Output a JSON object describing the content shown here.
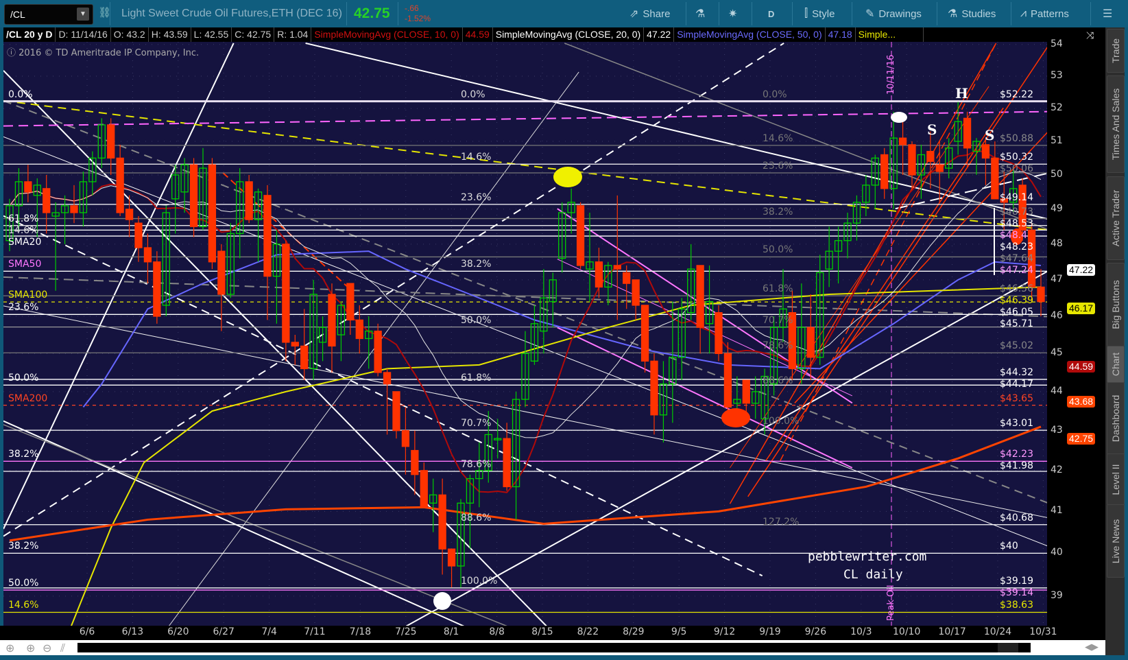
{
  "toolbar": {
    "symbol": "/CL",
    "title": "Light Sweet Crude Oil Futures,ETH (DEC 16)",
    "last": "42.75",
    "change": "-.66",
    "change_pct": "-1.52%",
    "buttons": {
      "share": "Share",
      "period": "D",
      "style": "Style",
      "drawings": "Drawings",
      "studies": "Studies",
      "patterns": "Patterns"
    }
  },
  "legend": {
    "symbol": "/CL 20 y D",
    "date": "D: 11/14/16",
    "open": "O: 43.2",
    "high": "H: 43.59",
    "low": "L: 42.55",
    "close": "C: 42.75",
    "range": "R: 1.04",
    "studies": [
      {
        "label": "SimpleMovingAvg (CLOSE, 10, 0)",
        "value": "44.59",
        "color": "#d01010"
      },
      {
        "label": "SimpleMovingAvg (CLOSE, 20, 0)",
        "value": "47.22",
        "color": "#ffffff"
      },
      {
        "label": "SimpleMovingAvg (CLOSE, 50, 0)",
        "value": "47.18",
        "color": "#6b6bff"
      },
      {
        "label": "Simple...",
        "color": "#e8e800"
      }
    ]
  },
  "copyright": "2016 © TD Ameritrade IP Company, Inc.",
  "annotations": {
    "site": "pebblewriter.com",
    "chart_name": "CL daily",
    "vline_date": "10/11/16",
    "vline_label": "Peak Oil",
    "head": "H",
    "shoulder_left": "S",
    "shoulder_right": "S"
  },
  "side_tabs": [
    "Trade",
    "Times And Sales",
    "Active Trader",
    "Big Buttons",
    "Chart",
    "Dashboard",
    "Level II",
    "Live News"
  ],
  "selected_tab": "Chart",
  "chart_data": {
    "type": "candlestick",
    "price_scale": "log",
    "ylim": [
      38.2,
      54.2
    ],
    "y_ticks": [
      "54",
      "53",
      "52",
      "51",
      "50",
      "49",
      "48",
      "47",
      "46",
      "45",
      "44",
      "43",
      "42",
      "41",
      "40",
      "39"
    ],
    "x_ticks": [
      "6/6",
      "6/13",
      "6/20",
      "6/27",
      "7/4",
      "7/11",
      "7/18",
      "7/25",
      "8/1",
      "8/8",
      "8/15",
      "8/22",
      "8/29",
      "9/5",
      "9/12",
      "9/19",
      "9/26",
      "10/3",
      "10/10",
      "10/17",
      "10/24",
      "10/31"
    ],
    "candles_ohlc": [
      [
        48.1,
        49.3,
        47.8,
        49.1
      ],
      [
        49.1,
        50.2,
        48.4,
        49.8
      ],
      [
        49.8,
        50.3,
        49.2,
        49.5
      ],
      [
        49.4,
        49.9,
        48.2,
        49.7
      ],
      [
        49.6,
        50.0,
        48.3,
        48.9
      ],
      [
        48.8,
        49.2,
        46.7,
        48.9
      ],
      [
        48.9,
        49.4,
        48.0,
        49.1
      ],
      [
        49.1,
        49.7,
        48.6,
        48.9
      ],
      [
        48.9,
        50.1,
        48.5,
        49.8
      ],
      [
        49.8,
        50.7,
        49.4,
        50.5
      ],
      [
        50.5,
        51.7,
        50.2,
        51.5
      ],
      [
        51.5,
        51.7,
        50.0,
        50.5
      ],
      [
        50.5,
        50.9,
        48.8,
        48.9
      ],
      [
        49.0,
        49.4,
        48.2,
        48.7
      ],
      [
        48.6,
        48.8,
        47.5,
        47.9
      ],
      [
        47.9,
        48.3,
        46.9,
        47.5
      ],
      [
        47.5,
        47.8,
        45.8,
        46.0
      ],
      [
        46.3,
        49.1,
        46.0,
        48.9
      ],
      [
        49.3,
        50.3,
        48.3,
        50.0
      ],
      [
        49.5,
        50.5,
        48.9,
        50.3
      ],
      [
        50.3,
        50.5,
        48.2,
        48.5
      ],
      [
        48.5,
        50.8,
        48.4,
        50.2
      ],
      [
        50.3,
        50.5,
        47.3,
        47.5
      ],
      [
        47.8,
        48.0,
        45.6,
        46.6
      ],
      [
        46.6,
        48.6,
        46.5,
        48.3
      ],
      [
        48.3,
        50.2,
        47.6,
        49.8
      ],
      [
        49.8,
        50.0,
        48.6,
        48.7
      ],
      [
        48.7,
        49.6,
        47.5,
        49.5
      ],
      [
        49.4,
        49.7,
        45.9,
        47.1
      ],
      [
        47.1,
        48.4,
        45.8,
        48.0
      ],
      [
        48.0,
        48.1,
        44.8,
        45.3
      ],
      [
        45.3,
        45.5,
        44.7,
        45.2
      ],
      [
        45.2,
        46.2,
        44.3,
        44.6
      ],
      [
        44.6,
        47.0,
        44.3,
        46.6
      ],
      [
        45.3,
        46.0,
        44.8,
        45.7
      ],
      [
        46.6,
        46.9,
        44.5,
        45.2
      ],
      [
        45.5,
        46.4,
        44.8,
        46.3
      ],
      [
        46.9,
        46.9,
        45.5,
        45.9
      ],
      [
        45.9,
        46.3,
        45.0,
        45.4
      ],
      [
        45.4,
        46.0,
        44.6,
        45.6
      ],
      [
        45.6,
        45.8,
        44.4,
        44.5
      ],
      [
        44.5,
        44.6,
        42.9,
        44.2
      ],
      [
        44.0,
        44.0,
        42.8,
        43.0
      ],
      [
        43.0,
        43.6,
        41.9,
        42.6
      ],
      [
        42.5,
        43.0,
        41.4,
        41.9
      ],
      [
        42.0,
        42.2,
        41.1,
        41.1
      ],
      [
        41.2,
        41.8,
        40.5,
        41.4
      ],
      [
        41.4,
        41.8,
        39.5,
        40.1
      ],
      [
        40.1,
        40.1,
        39.2,
        39.7
      ],
      [
        39.7,
        41.3,
        39.2,
        41.2
      ],
      [
        41.2,
        41.9,
        40.1,
        41.8
      ],
      [
        41.8,
        42.7,
        41.1,
        42.0
      ],
      [
        42.0,
        43.5,
        41.7,
        42.9
      ],
      [
        42.8,
        43.3,
        42.3,
        42.8
      ],
      [
        42.8,
        43.2,
        41.5,
        41.6
      ],
      [
        41.6,
        44.0,
        40.8,
        43.8
      ],
      [
        43.8,
        45.6,
        43.6,
        45.0
      ],
      [
        44.8,
        46.3,
        44.7,
        45.8
      ],
      [
        45.6,
        47.3,
        45.0,
        46.5
      ],
      [
        46.4,
        47.2,
        45.7,
        47.0
      ],
      [
        47.6,
        49.2,
        47.2,
        48.9
      ],
      [
        48.9,
        49.6,
        48.3,
        49.2
      ],
      [
        49.1,
        49.2,
        47.3,
        47.4
      ],
      [
        47.3,
        48.9,
        46.4,
        47.5
      ],
      [
        47.5,
        47.9,
        46.5,
        46.8
      ],
      [
        46.8,
        47.5,
        46.3,
        47.4
      ],
      [
        47.4,
        49.4,
        45.9,
        47.3
      ],
      [
        47.2,
        47.4,
        46.2,
        46.9
      ],
      [
        47.0,
        47.0,
        45.9,
        46.3
      ],
      [
        46.3,
        46.3,
        44.5,
        44.8
      ],
      [
        44.8,
        45.0,
        42.9,
        43.4
      ],
      [
        43.4,
        44.8,
        42.7,
        44.2
      ],
      [
        44.2,
        46.4,
        43.2,
        44.9
      ],
      [
        44.9,
        46.5,
        44.3,
        46.2
      ],
      [
        46.1,
        48.0,
        45.9,
        47.3
      ],
      [
        47.4,
        47.4,
        45.0,
        45.7
      ],
      [
        45.8,
        47.4,
        45.0,
        46.4
      ],
      [
        46.1,
        46.3,
        44.8,
        45.0
      ],
      [
        45.0,
        45.3,
        43.2,
        43.6
      ],
      [
        43.7,
        44.4,
        43.3,
        43.8
      ],
      [
        44.3,
        44.3,
        43.4,
        43.7
      ],
      [
        43.7,
        44.4,
        43.3,
        44.0
      ],
      [
        43.3,
        44.6,
        42.9,
        44.4
      ],
      [
        44.2,
        46.0,
        43.9,
        45.7
      ],
      [
        45.7,
        47.3,
        45.3,
        46.2
      ],
      [
        46.1,
        46.7,
        44.3,
        44.6
      ],
      [
        44.6,
        46.9,
        44.2,
        45.7
      ],
      [
        45.7,
        46.6,
        44.3,
        44.9
      ],
      [
        44.9,
        47.7,
        44.7,
        47.2
      ],
      [
        47.3,
        48.5,
        46.8,
        47.8
      ],
      [
        47.8,
        48.5,
        46.9,
        48.1
      ],
      [
        48.1,
        48.9,
        47.6,
        48.6
      ],
      [
        48.6,
        49.4,
        48.1,
        49.2
      ],
      [
        49.2,
        50.0,
        48.8,
        49.7
      ],
      [
        49.7,
        50.6,
        49.0,
        50.5
      ],
      [
        50.6,
        50.8,
        49.3,
        49.6
      ],
      [
        49.6,
        51.9,
        49.0,
        51.1
      ],
      [
        51.1,
        51.6,
        50.0,
        50.9
      ],
      [
        50.9,
        51.0,
        49.6,
        50.0
      ],
      [
        50.0,
        50.9,
        49.3,
        50.6
      ],
      [
        50.7,
        51.3,
        49.6,
        50.4
      ],
      [
        50.3,
        51.0,
        49.2,
        50.1
      ],
      [
        50.2,
        51.1,
        49.9,
        50.8
      ],
      [
        51.0,
        52.2,
        50.6,
        51.6
      ],
      [
        51.7,
        51.9,
        50.2,
        50.8
      ],
      [
        50.7,
        51.1,
        50.0,
        51.0
      ],
      [
        50.9,
        51.1,
        49.7,
        50.5
      ],
      [
        50.5,
        51.0,
        49.3,
        49.3
      ],
      [
        49.3,
        50.1,
        48.4,
        49.2
      ],
      [
        49.2,
        50.2,
        48.9,
        49.6
      ],
      [
        49.7,
        49.9,
        48.1,
        48.4
      ],
      [
        48.4,
        48.6,
        46.4,
        46.8
      ],
      [
        46.8,
        47.3,
        46.0,
        46.4
      ]
    ],
    "sma": [
      {
        "name": "SMA10",
        "length": 10,
        "color": "#b00a0a"
      },
      {
        "name": "SMA20",
        "length": 20,
        "color": "#e6e6e6"
      }
    ],
    "sma_points": [
      {
        "name": "SMA50",
        "color": "#6666ff",
        "points": [
          [
            8,
            43.6
          ],
          [
            10,
            44.2
          ],
          [
            15,
            46.2
          ],
          [
            21,
            46.9
          ],
          [
            29,
            47.7
          ],
          [
            39,
            47.8
          ],
          [
            43,
            47.3
          ],
          [
            50,
            46.6
          ],
          [
            57,
            45.9
          ],
          [
            69,
            45.1
          ],
          [
            78,
            44.7
          ],
          [
            88,
            44.6
          ],
          [
            96,
            45.8
          ],
          [
            103,
            47.0
          ],
          [
            107,
            47.5
          ],
          [
            112,
            47.4
          ]
        ]
      },
      {
        "name": "SMA100",
        "color": "#e6e600",
        "points": [
          [
            4.5,
            37.2
          ],
          [
            8,
            39.0
          ],
          [
            11,
            40.6
          ],
          [
            14.6,
            42.2
          ],
          [
            22,
            43.5
          ],
          [
            30,
            44.0
          ],
          [
            41,
            44.6
          ],
          [
            51,
            44.7
          ],
          [
            65,
            45.7
          ],
          [
            74,
            46.3
          ],
          [
            89,
            46.6
          ],
          [
            112,
            46.8
          ]
        ]
      },
      {
        "name": "SMA200",
        "color": "#ff4400",
        "points": [
          [
            0,
            40.3
          ],
          [
            15,
            40.8
          ],
          [
            30,
            41.05
          ],
          [
            45,
            41.1
          ],
          [
            58,
            40.7
          ],
          [
            77,
            41.0
          ],
          [
            93,
            41.6
          ],
          [
            103,
            42.3
          ],
          [
            112,
            43.1
          ]
        ]
      }
    ],
    "levels": [
      {
        "price": 52.22,
        "label": "$52.22",
        "color": "#ffffff",
        "line": "#e8e0f0"
      },
      {
        "price": 50.88,
        "label": "$50.88",
        "color": "#888888",
        "line": "#777777"
      },
      {
        "price": 50.32,
        "label": "$50.32",
        "color": "#ffffff",
        "line": "#ffffff"
      },
      {
        "price": 50.06,
        "label": "$50.06",
        "color": "#888888",
        "line": "#777777"
      },
      {
        "price": 49.14,
        "label": "$49.14",
        "color": "#ffffff",
        "line": "#ffffff"
      },
      {
        "price": 48.73,
        "label": "$48.73",
        "color": "#888888",
        "line": "#777777"
      },
      {
        "price": 48.53,
        "label": "$48.53",
        "color": "#ffffff",
        "line": "#ffffff"
      },
      {
        "price": 48.4,
        "label": "$48.4",
        "color": "#ff99ff",
        "line": "#ffffff"
      },
      {
        "price": 48.23,
        "label": "$48.23",
        "color": "#ffffff",
        "line": "#ffffff"
      },
      {
        "price": 47.64,
        "label": "$47.64",
        "color": "#888888",
        "line": "#777777"
      },
      {
        "price": 47.24,
        "label": "$47.24",
        "color": "#ff99ff",
        "line": "#ffffff"
      },
      {
        "price": 46.56,
        "label": "$46.56",
        "color": "#888888",
        "line": "#777777"
      },
      {
        "price": 46.39,
        "label": "$46.39",
        "color": "#e6e600",
        "line": "#e6e600"
      },
      {
        "price": 46.05,
        "label": "$46.05",
        "color": "#ffffff",
        "line": "#ffffff"
      },
      {
        "price": 45.71,
        "label": "$45.71",
        "color": "#ffffff",
        "line": "#999999"
      },
      {
        "price": 45.02,
        "label": "$45.02",
        "color": "#888888",
        "line": "#777777"
      },
      {
        "price": 44.32,
        "label": "$44.32",
        "color": "#ffffff",
        "line": "#ffffff"
      },
      {
        "price": 44.17,
        "label": "$44.17",
        "color": "#ffffff",
        "line": "#ffffff"
      },
      {
        "price": 43.65,
        "label": "$43.65",
        "color": "#ff4422",
        "line": "#ff4422"
      },
      {
        "price": 43.01,
        "label": "$43.01",
        "color": "#ffffff",
        "line": "#ffffff"
      },
      {
        "price": 42.23,
        "label": "$42.23",
        "color": "#ff99ff",
        "line": "#ff77ff"
      },
      {
        "price": 41.98,
        "label": "$41.98",
        "color": "#ffffff",
        "line": "#ffffff"
      },
      {
        "price": 40.68,
        "label": "$40.68",
        "color": "#ffffff",
        "line": "#ffffff"
      },
      {
        "price": 40.0,
        "label": "$40",
        "color": "#ffffff",
        "line": "#ffffff"
      },
      {
        "price": 39.19,
        "label": "$39.19",
        "color": "#ffffff",
        "line": "#ffffff"
      },
      {
        "price": 39.14,
        "label": "$39.14",
        "color": "#ff99ff",
        "line": "#ff77ff"
      },
      {
        "price": 38.63,
        "label": "$38.63",
        "color": "#e6e600",
        "line": "#e6e600"
      }
    ],
    "fib_left": [
      {
        "price": 52.22,
        "label": "0.0%",
        "color": "#ffffff"
      },
      {
        "price": 48.53,
        "label": "61.8%",
        "color": "#ffffff"
      },
      {
        "price": 48.4,
        "label": "14.6%",
        "color": "#dddddd"
      },
      {
        "price": 48.23,
        "label": "SMA20",
        "color": "#ffffff"
      },
      {
        "price": 47.24,
        "label": "SMA50",
        "color": "#ff77ff"
      },
      {
        "price": 46.39,
        "label": "SMA100",
        "color": "#e6e600"
      },
      {
        "price": 46.05,
        "label": "23.6%",
        "color": "#ffffff"
      },
      {
        "price": 44.17,
        "label": "50.0%",
        "color": "#ffffff"
      },
      {
        "price": 43.65,
        "label": "SMA200",
        "color": "#ff4422"
      },
      {
        "price": 42.23,
        "label": "38.2%",
        "color": "#ffffff"
      },
      {
        "price": 40.0,
        "label": "38.2%",
        "color": "#ffffff"
      },
      {
        "price": 39.14,
        "label": "50.0%",
        "color": "#ffffff"
      },
      {
        "price": 38.63,
        "label": "14.6%",
        "color": "#e6e600"
      }
    ],
    "fib_mid": [
      {
        "price": 52.22,
        "label": "0.0%"
      },
      {
        "price": 50.32,
        "label": "14.6%"
      },
      {
        "price": 49.14,
        "label": "23.6%"
      },
      {
        "price": 47.24,
        "label": "38.2%"
      },
      {
        "price": 45.71,
        "label": "50.0%"
      },
      {
        "price": 44.17,
        "label": "61.8%"
      },
      {
        "price": 43.01,
        "label": "70.7%"
      },
      {
        "price": 41.98,
        "label": "78.6%"
      },
      {
        "price": 40.68,
        "label": "88.6%"
      },
      {
        "price": 39.19,
        "label": "100.0%"
      }
    ],
    "fib_right": [
      {
        "price": 52.22,
        "label": "0.0%"
      },
      {
        "price": 50.88,
        "label": "14.6%"
      },
      {
        "price": 50.06,
        "label": "23.6%"
      },
      {
        "price": 48.73,
        "label": "38.2%"
      },
      {
        "price": 47.64,
        "label": "50.0%"
      },
      {
        "price": 46.56,
        "label": "61.8%"
      },
      {
        "price": 45.71,
        "label": "70.7%"
      },
      {
        "price": 45.02,
        "label": "78.6%"
      },
      {
        "price": 44.11,
        "label": "88.6%"
      },
      {
        "price": 43.06,
        "label": "100.0%"
      },
      {
        "price": 40.57,
        "label": "127.2%"
      }
    ],
    "price_badges": [
      {
        "value": "47.22",
        "bg": "#ffffff",
        "fg": "#000000"
      },
      {
        "value": "46.17",
        "bg": "#e6e600",
        "fg": "#000000"
      },
      {
        "value": "44.59",
        "bg": "#b00a0a",
        "fg": "#ffffff"
      },
      {
        "value": "43.68",
        "bg": "#ff4400",
        "fg": "#ffffff"
      },
      {
        "value": "42.75",
        "bg": "#ff4400",
        "fg": "#ffffff"
      }
    ],
    "colors": {
      "up": "#00cc00",
      "down": "#ff3300",
      "background": "#15133f"
    }
  }
}
